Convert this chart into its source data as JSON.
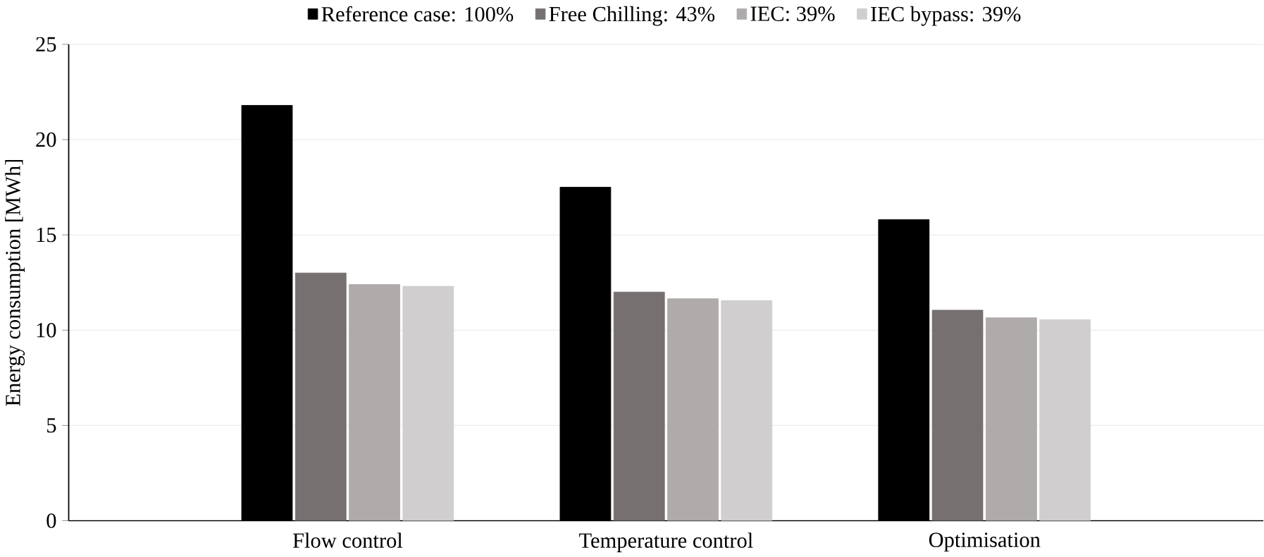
{
  "chart_data": {
    "type": "bar",
    "ylabel": "Energy consumption [MWh]",
    "categories": [
      "Flow control",
      "Temperature control",
      "Optimisation"
    ],
    "series": [
      {
        "name": "Reference case: 100%",
        "color": "#000000",
        "values": [
          21.8,
          17.5,
          15.8
        ]
      },
      {
        "name": "Free Chilling: 43%",
        "color": "#767170",
        "values": [
          13.0,
          12.0,
          11.05
        ]
      },
      {
        "name": "IEC: 39%",
        "color": "#afabaa",
        "values": [
          12.4,
          11.65,
          10.65
        ]
      },
      {
        "name": "IEC bypass: 39%",
        "color": "#d0cece",
        "values": [
          12.3,
          11.55,
          10.55
        ]
      }
    ],
    "ylim": [
      0,
      25
    ],
    "yticks": [
      0,
      5,
      10,
      15,
      20,
      25
    ],
    "grid": "y",
    "legend": "top"
  }
}
